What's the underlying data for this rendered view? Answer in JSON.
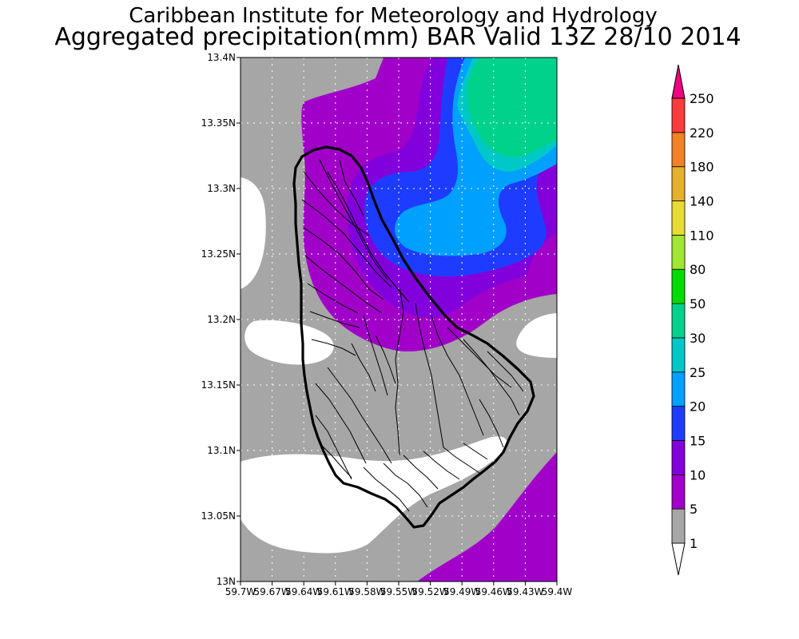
{
  "title": {
    "line1": "Caribbean Institute for Meteorology and Hydrology",
    "line2": "Aggregated precipitation(mm) BAR Valid 13Z 28/10 2014"
  },
  "map": {
    "lat_range": [
      13.0,
      13.4
    ],
    "lon_range": [
      -59.7,
      -59.4
    ],
    "lat_ticks": [
      "13.4N",
      "13.35N",
      "13.3N",
      "13.25N",
      "13.2N",
      "13.15N",
      "13.1N",
      "13.05N",
      "13N"
    ],
    "lon_ticks": [
      "59.7W",
      "59.67W",
      "59.64W",
      "59.61W",
      "59.58W",
      "59.55W",
      "59.52W",
      "59.49W",
      "59.46W",
      "59.43W",
      "59.4W"
    ],
    "grid": true,
    "colors": {
      "none": "#ffffff",
      "1-5": "#a6a6a6",
      "5-10": "#a000c8",
      "10-15": "#8200dc",
      "15-20": "#1e3cff",
      "20-25": "#00a0ff",
      "25-30": "#00c8c8",
      "30-50": "#00d28c",
      "coast": "#000000"
    }
  },
  "colorbar": {
    "labels": [
      "1",
      "5",
      "10",
      "15",
      "20",
      "25",
      "30",
      "50",
      "80",
      "110",
      "140",
      "180",
      "220",
      "250"
    ],
    "colors": [
      "#a6a6a6",
      "#a000c8",
      "#8200dc",
      "#1e3cff",
      "#00a0ff",
      "#00c8c8",
      "#00d28c",
      "#00dc00",
      "#a0e632",
      "#e6dc32",
      "#e6af2d",
      "#f08228",
      "#fa3c3c",
      "#f00082"
    ],
    "under_color": "#ffffff"
  }
}
